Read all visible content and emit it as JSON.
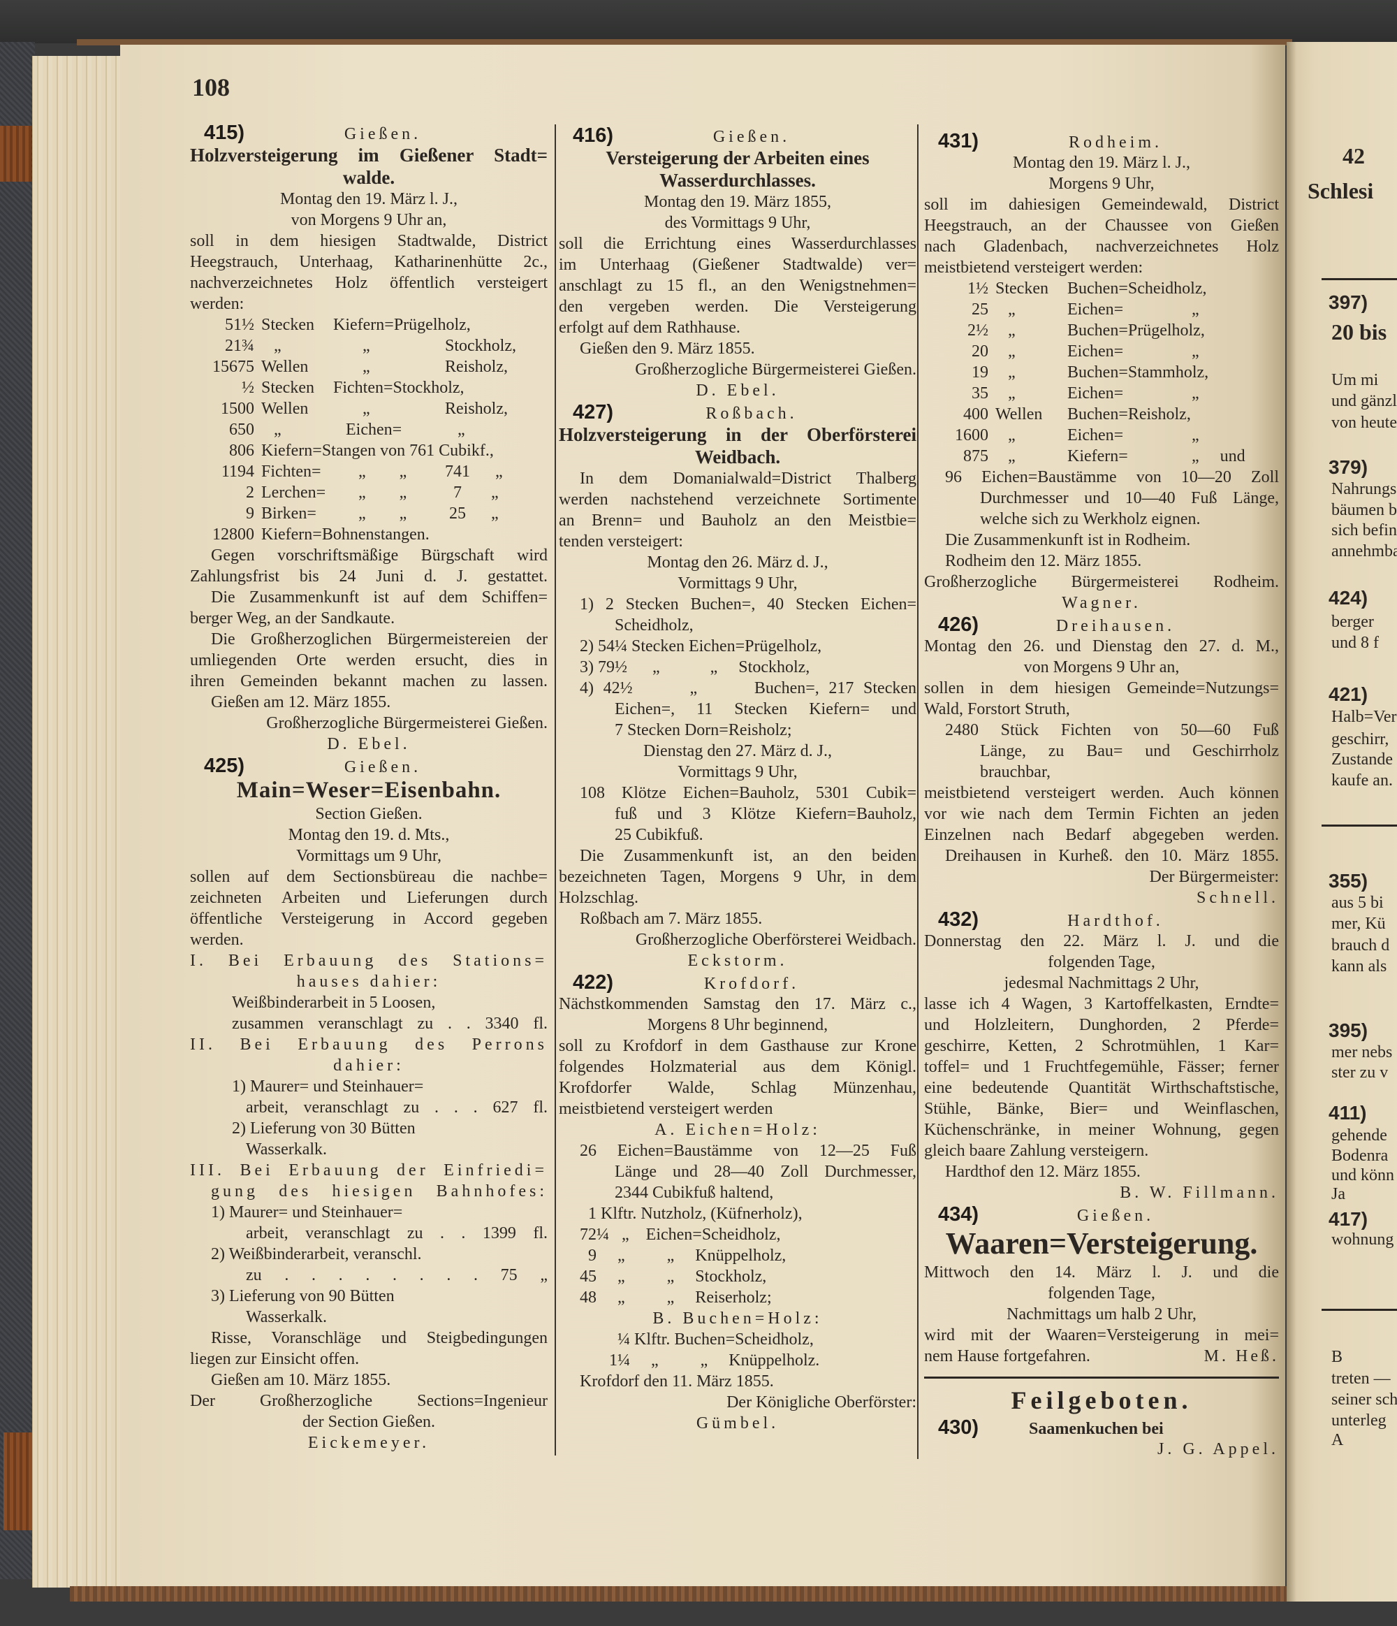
{
  "page_number": "108",
  "columns": [
    {
      "lines": [
        {
          "num": "415)",
          "place": "Gießen."
        },
        {
          "t": "Holzversteigerung im Gießener Stadt=",
          "a": "j big"
        },
        {
          "t": "walde.",
          "a": "c big"
        },
        {
          "t": "Montag den 19. März l. J.,",
          "a": "c"
        },
        {
          "t": "von Morgens 9 Uhr an,",
          "a": "c"
        },
        {
          "t": "soll in dem hiesigen Stadtwalde, District",
          "a": "j"
        },
        {
          "t": "Heegstrauch, Unterhaag, Katharinenhütte 2c.,",
          "a": "j"
        },
        {
          "t": "nachverzeichnetes Holz öffentlich versteigert",
          "a": "j"
        },
        {
          "t": "werden:",
          "a": "l"
        },
        {
          "cells": [
            "51½",
            "Stecken",
            "Kiefern=Prügelholz,",
            ""
          ]
        },
        {
          "cells": [
            "21¾",
            "   „",
            "       „",
            "Stockholz,"
          ]
        },
        {
          "cells": [
            "15675",
            "Wellen",
            "       „",
            "Reisholz,"
          ]
        },
        {
          "cells": [
            "½",
            "Stecken",
            "Fichten=Stockholz,",
            ""
          ]
        },
        {
          "cells": [
            "1500",
            "Wellen",
            "       „",
            "Reisholz,"
          ]
        },
        {
          "cells": [
            "650",
            "   „",
            "   Eichen=",
            "   „"
          ]
        },
        {
          "cells": [
            "806",
            "Kiefern=Stangen von 761 Cubikf.,",
            "",
            ""
          ]
        },
        {
          "cells": [
            "1194",
            "Fichten=",
            "      „        „",
            "741      „"
          ]
        },
        {
          "cells": [
            "2",
            "Lerchen=",
            "      „        „",
            "  7       „"
          ]
        },
        {
          "cells": [
            "9",
            "Birken=",
            "      „        „",
            " 25      „"
          ]
        },
        {
          "cells": [
            "12800",
            "Kiefern=Bohnenstangen.",
            "",
            ""
          ]
        },
        {
          "t": "Gegen vorschriftsmäßige Bürgschaft wird",
          "a": "j i"
        },
        {
          "t": "Zahlungsfrist bis 24 Juni d. J. gestattet.",
          "a": "j"
        },
        {
          "t": "Die Zusammenkunft ist auf dem Schiffen=",
          "a": "j i"
        },
        {
          "t": "berger Weg, an der Sandkaute.",
          "a": "l"
        },
        {
          "t": "Die Großherzoglichen Bürgermeistereien der",
          "a": "j i"
        },
        {
          "t": "umliegenden Orte werden ersucht, dies in",
          "a": "j"
        },
        {
          "t": "ihren Gemeinden bekannt machen zu lassen.",
          "a": "j"
        },
        {
          "t": "Gießen am 12. März 1855.",
          "a": "l i"
        },
        {
          "t": "Großherzogliche Bürgermeisterei Gießen.",
          "a": "r"
        },
        {
          "t": "D. Ebel.",
          "a": "c sp"
        },
        {
          "num": "425)",
          "place": "Gießen."
        },
        {
          "t": "Main=Weser=Eisenbahn.",
          "a": "c xbig"
        },
        {
          "t": "Section Gießen.",
          "a": "c"
        },
        {
          "t": "Montag den 19. d. Mts.,",
          "a": "c"
        },
        {
          "t": "Vormittags um 9 Uhr,",
          "a": "c"
        },
        {
          "t": "sollen auf dem Sectionsbüreau die nachbe=",
          "a": "j"
        },
        {
          "t": "zeichneten Arbeiten und Lieferungen durch",
          "a": "j"
        },
        {
          "t": "öffentliche Versteigerung in Accord gegeben",
          "a": "j"
        },
        {
          "t": "werden.",
          "a": "l"
        },
        {
          "t": "I. Bei Erbauung des Stations=",
          "a": "j sp"
        },
        {
          "t": "hauses dahier:",
          "a": "c sp"
        },
        {
          "t": "Weißbinderarbeit in 5 Loosen,",
          "a": "l ii"
        },
        {
          "t": "zusammen veranschlagt zu . . 3340 fl.",
          "a": "j ii"
        },
        {
          "t": "II. Bei Erbauung des Perrons",
          "a": "j sp"
        },
        {
          "t": "dahier:",
          "a": "c sp"
        },
        {
          "t": "1) Maurer= und Steinhauer=",
          "a": "l ii"
        },
        {
          "t": "arbeit, veranschlagt zu . . . 627 fl.",
          "a": "j h"
        },
        {
          "t": "2) Lieferung von 30 Bütten",
          "a": "l ii"
        },
        {
          "t": "Wasserkalk.",
          "a": "l h"
        },
        {
          "t": "III. Bei Erbauung der Einfriedi=",
          "a": "j sp"
        },
        {
          "t": "gung des hiesigen Bahnhofes:",
          "a": "j i sp"
        },
        {
          "t": "1) Maurer= und Steinhauer=",
          "a": "l i"
        },
        {
          "t": "arbeit, veranschlagt zu . . 1399 fl.",
          "a": "j h"
        },
        {
          "t": "2) Weißbinderarbeit, veranschl.",
          "a": "l i"
        },
        {
          "t": "zu . . . . . . . . 75 „",
          "a": "j h"
        },
        {
          "t": "3) Lieferung von 90 Bütten",
          "a": "l i"
        },
        {
          "t": "Wasserkalk.",
          "a": "l h"
        },
        {
          "t": "Risse, Voranschläge und Steigbedingungen",
          "a": "j i"
        },
        {
          "t": "liegen zur Einsicht offen.",
          "a": "l"
        },
        {
          "t": "Gießen am 10. März 1855.",
          "a": "l i"
        },
        {
          "t": "Der Großherzogliche Sections=Ingenieur",
          "a": "j"
        },
        {
          "t": "der Section Gießen.",
          "a": "c"
        },
        {
          "t": "Eickemeyer.",
          "a": "c sp"
        }
      ]
    },
    {
      "lines": [
        {
          "num": "416)",
          "place": "Gießen."
        },
        {
          "t": "Versteigerung der Arbeiten eines",
          "a": "c big"
        },
        {
          "t": "Wasserdurchlasses.",
          "a": "c big"
        },
        {
          "t": "Montag den 19. März 1855,",
          "a": "c"
        },
        {
          "t": "des Vormittags 9 Uhr,",
          "a": "c"
        },
        {
          "t": "soll die Errichtung eines Wasserdurchlasses",
          "a": "j"
        },
        {
          "t": "im Unterhaag (Gießener Stadtwalde) ver=",
          "a": "j"
        },
        {
          "t": "anschlagt zu 15 fl., an den Wenigstnehmen=",
          "a": "j"
        },
        {
          "t": "den vergeben werden. Die Versteigerung",
          "a": "j"
        },
        {
          "t": "erfolgt auf dem Rathhause.",
          "a": "l"
        },
        {
          "t": "Gießen den 9. März 1855.",
          "a": "l i"
        },
        {
          "t": "Großherzogliche Bürgermeisterei Gießen.",
          "a": "r"
        },
        {
          "t": "D. Ebel.",
          "a": "c sp"
        },
        {
          "num": "427)",
          "place": "Roßbach."
        },
        {
          "t": "Holzversteigerung in der Oberförsterei",
          "a": "j big"
        },
        {
          "t": "Weidbach.",
          "a": "c big"
        },
        {
          "t": "In dem Domanialwald=District Thalberg",
          "a": "j i"
        },
        {
          "t": "werden nachstehend verzeichnete Sortimente",
          "a": "j"
        },
        {
          "t": "an Brenn= und Bauholz an den Meistbie=",
          "a": "j"
        },
        {
          "t": "tenden versteigert:",
          "a": "l"
        },
        {
          "t": "Montag den 26. März d. J.,",
          "a": "c"
        },
        {
          "t": "Vormittags 9 Uhr,",
          "a": "c"
        },
        {
          "t": "1) 2 Stecken Buchen=, 40 Stecken Eichen=",
          "a": "j i"
        },
        {
          "t": "Scheidholz,",
          "a": "l h"
        },
        {
          "t": "2) 54¼ Stecken Eichen=Prügelholz,",
          "a": "l i"
        },
        {
          "t": "3) 79½      „            „     Stockholz,",
          "a": "l i"
        },
        {
          "t": "4) 42½      „      Buchen=, 217 Stecken",
          "a": "j i"
        },
        {
          "t": "Eichen=, 11 Stecken Kiefern= und",
          "a": "j h"
        },
        {
          "t": "7 Stecken Dorn=Reisholz;",
          "a": "l h"
        },
        {
          "t": "Dienstag den 27. März d. J.,",
          "a": "c"
        },
        {
          "t": "Vormittags 9 Uhr,",
          "a": "c"
        },
        {
          "t": "108 Klötze Eichen=Bauholz, 5301 Cubik=",
          "a": "j i"
        },
        {
          "t": "fuß und 3 Klötze Kiefern=Bauholz,",
          "a": "j h"
        },
        {
          "t": "25 Cubikfuß.",
          "a": "l h"
        },
        {
          "t": "Die Zusammenkunft ist, an den beiden",
          "a": "j i"
        },
        {
          "t": "bezeichneten Tagen, Morgens 9 Uhr, in dem",
          "a": "j"
        },
        {
          "t": "Holzschlag.",
          "a": "l"
        },
        {
          "t": "Roßbach am 7. März 1855.",
          "a": "l i"
        },
        {
          "t": "Großherzogliche Oberförsterei Weidbach.",
          "a": "r"
        },
        {
          "t": "Eckstorm.",
          "a": "c sp"
        },
        {
          "num": "422)",
          "place": "Krofdorf."
        },
        {
          "t": "Nächstkommenden Samstag den 17. März c.,",
          "a": "j"
        },
        {
          "t": "Morgens 8 Uhr beginnend,",
          "a": "c"
        },
        {
          "t": "soll zu Krofdorf in dem Gasthause zur Krone",
          "a": "j"
        },
        {
          "t": "folgendes Holzmaterial aus dem Königl.",
          "a": "j"
        },
        {
          "t": "Krofdorfer Walde, Schlag Münzenhau,",
          "a": "j"
        },
        {
          "t": "meistbietend versteigert werden",
          "a": "l"
        },
        {
          "t": "A. Eichen=Holz:",
          "a": "c sp"
        },
        {
          "t": "26 Eichen=Baustämme von 12—25 Fuß",
          "a": "j i"
        },
        {
          "t": "Länge und 28—40 Zoll Durchmesser,",
          "a": "j h"
        },
        {
          "t": "2344 Cubikfuß haltend,",
          "a": "l h"
        },
        {
          "t": "  1 Klftr. Nutzholz, (Küfnerholz),",
          "a": "l i"
        },
        {
          "t": "72¼   „    Eichen=Scheidholz,",
          "a": "l i"
        },
        {
          "t": "  9     „          „     Knüppelholz,",
          "a": "l i"
        },
        {
          "t": "45     „          „     Stockholz,",
          "a": "l i"
        },
        {
          "t": "48     „          „     Reiserholz;",
          "a": "l i"
        },
        {
          "t": "B. Buchen=Holz:",
          "a": "c sp"
        },
        {
          "t": "    ¼ Klftr. Buchen=Scheidholz,",
          "a": "l ii"
        },
        {
          "t": "  1¼     „          „     Knüppelholz.",
          "a": "l ii"
        },
        {
          "t": "Krofdorf den 11. März 1855.",
          "a": "l i"
        },
        {
          "t": "Der Königliche Oberförster:",
          "a": "r"
        },
        {
          "t": "Gümbel.",
          "a": "c sp"
        }
      ]
    },
    {
      "lines": [
        {
          "num": "431)",
          "place": "Rodheim."
        },
        {
          "t": "Montag den 19. März l. J.,",
          "a": "c"
        },
        {
          "t": "Morgens 9 Uhr,",
          "a": "c"
        },
        {
          "t": "soll im dahiesigen Gemeindewald, District",
          "a": "j"
        },
        {
          "t": "Heegstrauch, an der Chaussee von Gießen",
          "a": "j"
        },
        {
          "t": "nach Gladenbach, nachverzeichnetes Holz",
          "a": "j"
        },
        {
          "t": "meistbietend versteigert werden:",
          "a": "l"
        },
        {
          "cells": [
            "1½",
            "Stecken",
            "Buchen=Scheidholz,",
            ""
          ]
        },
        {
          "cells": [
            "25",
            "   „",
            "Eichen=",
            "   „"
          ]
        },
        {
          "cells": [
            "2½",
            "   „",
            "Buchen=Prügelholz,",
            ""
          ]
        },
        {
          "cells": [
            "20",
            "   „",
            "Eichen=",
            "   „"
          ]
        },
        {
          "cells": [
            "19",
            "   „",
            "Buchen=Stammholz,",
            ""
          ]
        },
        {
          "cells": [
            "35",
            "   „",
            "Eichen=",
            "   „"
          ]
        },
        {
          "cells": [
            "400",
            "Wellen",
            "Buchen=Reisholz,",
            ""
          ]
        },
        {
          "cells": [
            "1600",
            "   „",
            "Eichen=",
            "   „"
          ]
        },
        {
          "cells": [
            "875",
            "   „",
            "Kiefern=",
            "   „     und"
          ]
        },
        {
          "t": "96 Eichen=Baustämme von 10—20 Zoll",
          "a": "j i"
        },
        {
          "t": "Durchmesser und 10—40 Fuß Länge,",
          "a": "j h"
        },
        {
          "t": "welche sich zu Werkholz eignen.",
          "a": "l h"
        },
        {
          "t": "Die Zusammenkunft ist in Rodheim.",
          "a": "l i"
        },
        {
          "t": "Rodheim den 12. März 1855.",
          "a": "l i"
        },
        {
          "t": "Großherzogliche Bürgermeisterei Rodheim.",
          "a": "j"
        },
        {
          "t": "Wagner.",
          "a": "c sp"
        },
        {
          "num": "426)",
          "place": "Dreihausen."
        },
        {
          "t": "Montag den 26. und Dienstag den 27. d. M.,",
          "a": "j"
        },
        {
          "t": "von Morgens 9 Uhr an,",
          "a": "c"
        },
        {
          "t": "sollen in dem hiesigen Gemeinde=Nutzungs=",
          "a": "j"
        },
        {
          "t": "Wald, Forstort Struth,",
          "a": "l"
        },
        {
          "t": "2480 Stück Fichten von 50—60 Fuß",
          "a": "j i"
        },
        {
          "t": "Länge, zu Bau= und Geschirrholz",
          "a": "j h"
        },
        {
          "t": "brauchbar,",
          "a": "l h"
        },
        {
          "t": "meistbietend versteigert werden. Auch können",
          "a": "j"
        },
        {
          "t": "vor wie nach dem Termin Fichten an jeden",
          "a": "j"
        },
        {
          "t": "Einzelnen nach Bedarf abgegeben werden.",
          "a": "j"
        },
        {
          "t": "Dreihausen in Kurheß. den 10. März 1855.",
          "a": "j i"
        },
        {
          "t": "Der Bürgermeister:",
          "a": "r ii"
        },
        {
          "t": "Schnell.",
          "a": "r sp"
        },
        {
          "num": "432)",
          "place": "Hardthof."
        },
        {
          "t": "Donnerstag den 22. März l. J. und die",
          "a": "j"
        },
        {
          "t": "folgenden Tage,",
          "a": "c"
        },
        {
          "t": "jedesmal Nachmittags 2 Uhr,",
          "a": "c"
        },
        {
          "t": "lasse ich 4 Wagen, 3 Kartoffelkasten, Erndte=",
          "a": "j"
        },
        {
          "t": "und Holzleitern, Dunghorden, 2 Pferde=",
          "a": "j"
        },
        {
          "t": "geschirre, Ketten, 2 Schrotmühlen, 1 Kar=",
          "a": "j"
        },
        {
          "t": "toffel= und 1 Fruchtfegemühle, Fässer; ferner",
          "a": "j"
        },
        {
          "t": "eine bedeutende Quantität Wirthschaftstische,",
          "a": "j"
        },
        {
          "t": "Stühle, Bänke, Bier= und Weinflaschen,",
          "a": "j"
        },
        {
          "t": "Küchenschränke, in meiner Wohnung, gegen",
          "a": "j"
        },
        {
          "t": "gleich baare Zahlung versteigern.",
          "a": "l"
        },
        {
          "t": "Hardthof den 12. März 1855.",
          "a": "l i"
        },
        {
          "t": "B. W. Fillmann.",
          "a": "r sp"
        },
        {
          "num": "434)",
          "place": "Gießen."
        },
        {
          "t": "Waaren=Versteigerung.",
          "a": "c huge"
        },
        {
          "t": "Mittwoch den 14. März l. J. und die",
          "a": "j"
        },
        {
          "t": "folgenden Tage,",
          "a": "c"
        },
        {
          "t": "Nachmittags um halb 2 Uhr,",
          "a": "c"
        },
        {
          "t": "wird mit der Waaren=Versteigerung in mei=",
          "a": "j"
        },
        {
          "t": "nem Hause fortgefahren.",
          "t2": "M. Heß.",
          "a": "split"
        },
        {
          "rule": true
        },
        {
          "t": "Feilgeboten.",
          "a": "c title"
        },
        {
          "num": "430)",
          "place": "Saamenkuchen bei",
          "left": true
        },
        {
          "t": "J. G. Appel.",
          "a": "r sp"
        }
      ]
    }
  ],
  "next_page_fragment": {
    "lines": [
      {
        "t": "42",
        "k": "b"
      },
      {
        "t": "Schlesi",
        "k": "b"
      },
      {
        "rule": true
      },
      {
        "t": "397)",
        "k": "n"
      },
      {
        "t": "20 bis",
        "k": "b"
      },
      {
        "t": "Um mi"
      },
      {
        "t": "und gänzl"
      },
      {
        "t": "von heute"
      },
      {
        "t": "379)",
        "k": "n"
      },
      {
        "t": "Nahrungs"
      },
      {
        "t": "bäumen b"
      },
      {
        "t": "sich befinde"
      },
      {
        "t": "annehmba"
      },
      {
        "t": "424)",
        "k": "n"
      },
      {
        "t": "berger"
      },
      {
        "t": "und 8 f"
      },
      {
        "t": "421)",
        "k": "n"
      },
      {
        "t": "Halb=Ver"
      },
      {
        "t": "geschirr,"
      },
      {
        "t": "Zustande"
      },
      {
        "t": "kaufe an."
      },
      {
        "rule": true
      },
      {
        "t": "355)",
        "k": "n"
      },
      {
        "t": "aus 5 bi"
      },
      {
        "t": "mer, Kü"
      },
      {
        "t": "brauch d"
      },
      {
        "t": "kann als"
      },
      {
        "t": "395)",
        "k": "n"
      },
      {
        "t": "mer nebs"
      },
      {
        "t": "ster zu v"
      },
      {
        "t": "411)",
        "k": "n"
      },
      {
        "t": "gehende"
      },
      {
        "t": "Bodenra"
      },
      {
        "t": "und könn"
      },
      {
        "t": "Ja"
      },
      {
        "t": "417)",
        "k": "n"
      },
      {
        "t": "wohnung"
      },
      {
        "rule": true
      },
      {
        "t": "B"
      },
      {
        "t": "treten —"
      },
      {
        "t": "seiner sch"
      },
      {
        "t": "unterleg"
      },
      {
        "t": "A"
      }
    ]
  },
  "colors": {
    "paper": "#eadfc5",
    "ink": "#2b2621",
    "binding": "#3a3b3a",
    "leather": "#8a4d26"
  }
}
